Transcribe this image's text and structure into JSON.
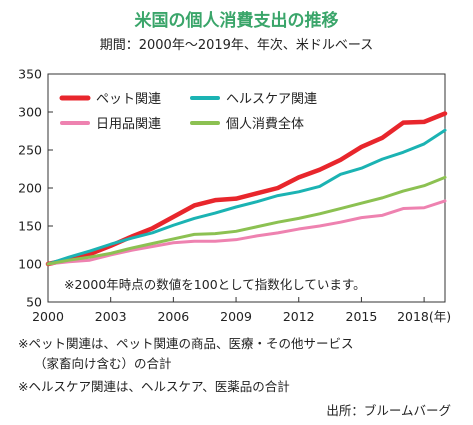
{
  "chart_data": {
    "type": "line",
    "title": "米国の個人消費支出の推移",
    "subtitle": "期間：2000年〜2019年、年次、米ドルベース",
    "x": [
      2000,
      2001,
      2002,
      2003,
      2004,
      2005,
      2006,
      2007,
      2008,
      2009,
      2010,
      2011,
      2012,
      2013,
      2014,
      2015,
      2016,
      2017,
      2018,
      2019
    ],
    "x_tick_labels": [
      "2000",
      "2003",
      "2006",
      "2009",
      "2012",
      "2015",
      "2018(年)"
    ],
    "x_tick_values": [
      2000,
      2003,
      2006,
      2009,
      2012,
      2015,
      2018
    ],
    "xlim": [
      2000,
      2019
    ],
    "y_tick_labels": [
      "50",
      "100",
      "150",
      "200",
      "250",
      "300",
      "350"
    ],
    "y_tick_values": [
      50,
      100,
      150,
      200,
      250,
      300,
      350
    ],
    "ylim": [
      50,
      350
    ],
    "grid": false,
    "legend_position": "top-left",
    "annotation": "※2000年時点の数値を100として指数化しています。",
    "series": [
      {
        "name": "ペット関連",
        "color": "#e8262c",
        "stroke_width": "thick",
        "values": [
          100,
          106,
          113,
          124,
          136,
          147,
          162,
          177,
          184,
          186,
          193,
          200,
          214,
          224,
          237,
          254,
          266,
          286,
          287,
          298
        ]
      },
      {
        "name": "ヘルスケア関連",
        "color": "#1bb3b3",
        "stroke_width": "normal",
        "values": [
          100,
          109,
          117,
          126,
          134,
          141,
          151,
          160,
          167,
          175,
          182,
          190,
          195,
          202,
          218,
          226,
          238,
          247,
          258,
          276
        ]
      },
      {
        "name": "日用品関連",
        "color": "#ee82b0",
        "stroke_width": "normal",
        "values": [
          100,
          103,
          105,
          112,
          118,
          123,
          128,
          130,
          130,
          132,
          137,
          141,
          146,
          150,
          155,
          161,
          164,
          173,
          174,
          183
        ]
      },
      {
        "name": "個人消費全体",
        "color": "#8cc152",
        "stroke_width": "normal",
        "values": [
          100,
          105,
          109,
          114,
          121,
          127,
          133,
          139,
          140,
          143,
          149,
          155,
          160,
          166,
          173,
          180,
          187,
          196,
          203,
          214
        ]
      }
    ]
  },
  "notes": [
    "※ペット関連は、ペット関連の商品、医療・その他サービス",
    "（家畜向け含む）の合計",
    "※ヘルスケア関連は、ヘルスケア、医薬品の合計"
  ],
  "source": "出所：ブルームバーグ"
}
